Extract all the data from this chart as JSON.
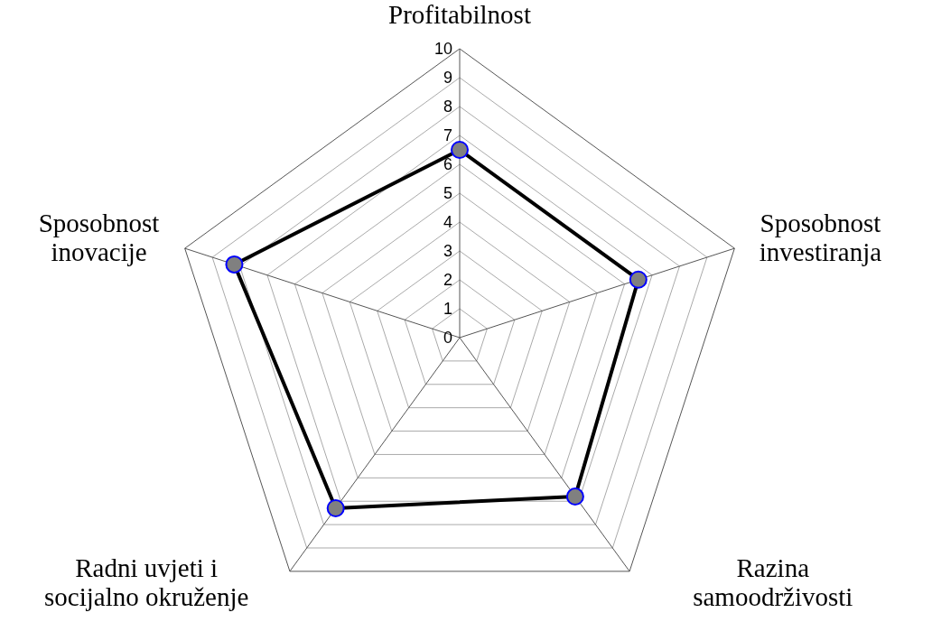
{
  "chart_data": {
    "type": "radar",
    "categories": [
      "Profitabilnost",
      "Sposobnost investiranja",
      "Razina samoodrživosti",
      "Radni uvjeti i socijalno okruženje",
      "Sposobnost inovacije"
    ],
    "series": [
      {
        "color": "#000000",
        "values": [
          6.5,
          6.5,
          6.8,
          7.3,
          8.2
        ]
      }
    ],
    "ylim": [
      0,
      10
    ],
    "yticks": [
      0,
      1,
      2,
      3,
      4,
      5,
      6,
      7,
      8,
      9,
      10
    ],
    "grid": true,
    "marker": "circle",
    "line_style": "solid"
  }
}
